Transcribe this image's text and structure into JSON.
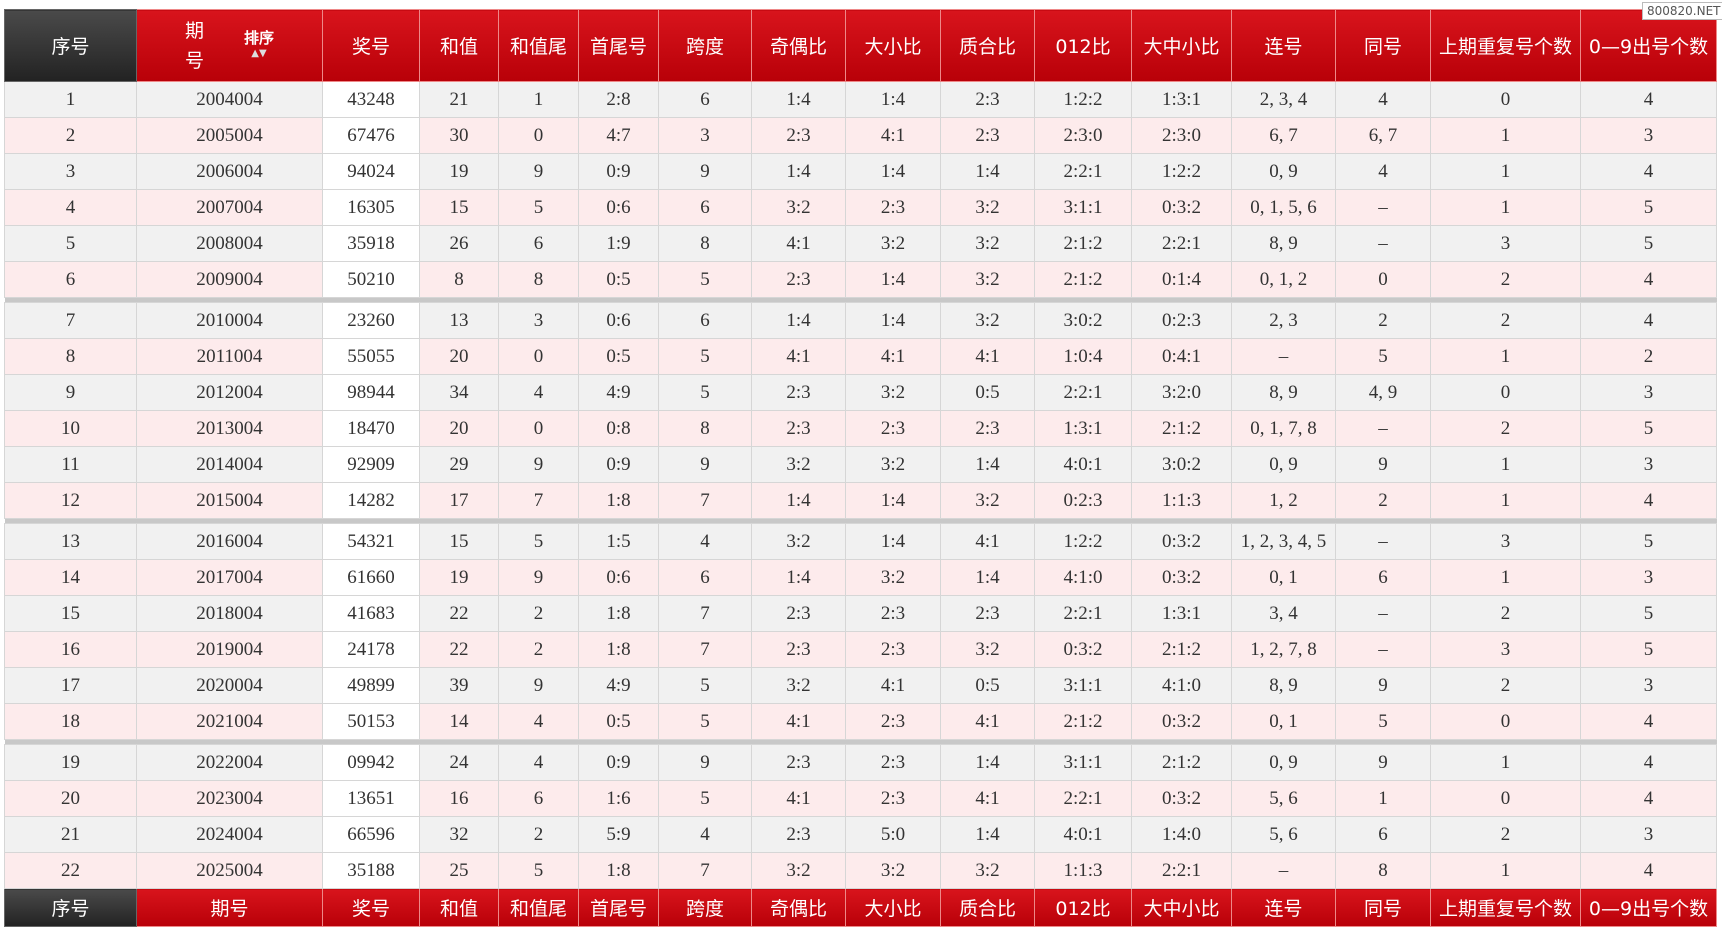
{
  "watermark": "800820.NET",
  "sort_label": "排序",
  "header": [
    "序号",
    "期号",
    "奖号",
    "和值",
    "和值尾",
    "首尾号",
    "跨度",
    "奇偶比",
    "大小比",
    "质合比",
    "012比",
    "大中小比",
    "连号",
    "同号",
    "上期重复号个数",
    "0—9出号个数"
  ],
  "footer": [
    "序号",
    "期号",
    "奖号",
    "和值",
    "和值尾",
    "首尾号",
    "跨度",
    "奇偶比",
    "大小比",
    "质合比",
    "012比",
    "大中小比",
    "连号",
    "同号",
    "上期重复号个数",
    "0—9出号个数"
  ],
  "table": {
    "rows": [
      [
        "1",
        "2004004",
        "43248",
        "21",
        "1",
        "2:8",
        "6",
        "1:4",
        "1:4",
        "2:3",
        "1:2:2",
        "1:3:1",
        "2, 3, 4",
        "4",
        "0",
        "4"
      ],
      [
        "2",
        "2005004",
        "67476",
        "30",
        "0",
        "4:7",
        "3",
        "2:3",
        "4:1",
        "2:3",
        "2:3:0",
        "2:3:0",
        "6, 7",
        "6, 7",
        "1",
        "3"
      ],
      [
        "3",
        "2006004",
        "94024",
        "19",
        "9",
        "0:9",
        "9",
        "1:4",
        "1:4",
        "1:4",
        "2:2:1",
        "1:2:2",
        "0, 9",
        "4",
        "1",
        "4"
      ],
      [
        "4",
        "2007004",
        "16305",
        "15",
        "5",
        "0:6",
        "6",
        "3:2",
        "2:3",
        "3:2",
        "3:1:1",
        "0:3:2",
        "0, 1, 5, 6",
        "–",
        "1",
        "5"
      ],
      [
        "5",
        "2008004",
        "35918",
        "26",
        "6",
        "1:9",
        "8",
        "4:1",
        "3:2",
        "3:2",
        "2:1:2",
        "2:2:1",
        "8, 9",
        "–",
        "3",
        "5"
      ],
      [
        "6",
        "2009004",
        "50210",
        "8",
        "8",
        "0:5",
        "5",
        "2:3",
        "1:4",
        "3:2",
        "2:1:2",
        "0:1:4",
        "0, 1, 2",
        "0",
        "2",
        "4"
      ],
      [
        "7",
        "2010004",
        "23260",
        "13",
        "3",
        "0:6",
        "6",
        "1:4",
        "1:4",
        "3:2",
        "3:0:2",
        "0:2:3",
        "2, 3",
        "2",
        "2",
        "4"
      ],
      [
        "8",
        "2011004",
        "55055",
        "20",
        "0",
        "0:5",
        "5",
        "4:1",
        "4:1",
        "4:1",
        "1:0:4",
        "0:4:1",
        "–",
        "5",
        "1",
        "2"
      ],
      [
        "9",
        "2012004",
        "98944",
        "34",
        "4",
        "4:9",
        "5",
        "2:3",
        "3:2",
        "0:5",
        "2:2:1",
        "3:2:0",
        "8, 9",
        "4, 9",
        "0",
        "3"
      ],
      [
        "10",
        "2013004",
        "18470",
        "20",
        "0",
        "0:8",
        "8",
        "2:3",
        "2:3",
        "2:3",
        "1:3:1",
        "2:1:2",
        "0, 1, 7, 8",
        "–",
        "2",
        "5"
      ],
      [
        "11",
        "2014004",
        "92909",
        "29",
        "9",
        "0:9",
        "9",
        "3:2",
        "3:2",
        "1:4",
        "4:0:1",
        "3:0:2",
        "0, 9",
        "9",
        "1",
        "3"
      ],
      [
        "12",
        "2015004",
        "14282",
        "17",
        "7",
        "1:8",
        "7",
        "1:4",
        "1:4",
        "3:2",
        "0:2:3",
        "1:1:3",
        "1, 2",
        "2",
        "1",
        "4"
      ],
      [
        "13",
        "2016004",
        "54321",
        "15",
        "5",
        "1:5",
        "4",
        "3:2",
        "1:4",
        "4:1",
        "1:2:2",
        "0:3:2",
        "1, 2, 3, 4, 5",
        "–",
        "3",
        "5"
      ],
      [
        "14",
        "2017004",
        "61660",
        "19",
        "9",
        "0:6",
        "6",
        "1:4",
        "3:2",
        "1:4",
        "4:1:0",
        "0:3:2",
        "0, 1",
        "6",
        "1",
        "3"
      ],
      [
        "15",
        "2018004",
        "41683",
        "22",
        "2",
        "1:8",
        "7",
        "2:3",
        "2:3",
        "2:3",
        "2:2:1",
        "1:3:1",
        "3, 4",
        "–",
        "2",
        "5"
      ],
      [
        "16",
        "2019004",
        "24178",
        "22",
        "2",
        "1:8",
        "7",
        "2:3",
        "2:3",
        "3:2",
        "0:3:2",
        "2:1:2",
        "1, 2, 7, 8",
        "–",
        "3",
        "5"
      ],
      [
        "17",
        "2020004",
        "49899",
        "39",
        "9",
        "4:9",
        "5",
        "3:2",
        "4:1",
        "0:5",
        "3:1:1",
        "4:1:0",
        "8, 9",
        "9",
        "2",
        "3"
      ],
      [
        "18",
        "2021004",
        "50153",
        "14",
        "4",
        "0:5",
        "5",
        "4:1",
        "2:3",
        "4:1",
        "2:1:2",
        "0:3:2",
        "0, 1",
        "5",
        "0",
        "4"
      ],
      [
        "19",
        "2022004",
        "09942",
        "24",
        "4",
        "0:9",
        "9",
        "2:3",
        "2:3",
        "1:4",
        "3:1:1",
        "2:1:2",
        "0, 9",
        "9",
        "1",
        "4"
      ],
      [
        "20",
        "2023004",
        "13651",
        "16",
        "6",
        "1:6",
        "5",
        "4:1",
        "2:3",
        "4:1",
        "2:2:1",
        "0:3:2",
        "5, 6",
        "1",
        "0",
        "4"
      ],
      [
        "21",
        "2024004",
        "66596",
        "32",
        "2",
        "5:9",
        "4",
        "2:3",
        "5:0",
        "1:4",
        "4:0:1",
        "1:4:0",
        "5, 6",
        "6",
        "2",
        "3"
      ],
      [
        "22",
        "2025004",
        "35188",
        "25",
        "5",
        "1:8",
        "7",
        "3:2",
        "3:2",
        "3:2",
        "1:1:3",
        "2:2:1",
        "–",
        "8",
        "1",
        "4"
      ]
    ]
  }
}
